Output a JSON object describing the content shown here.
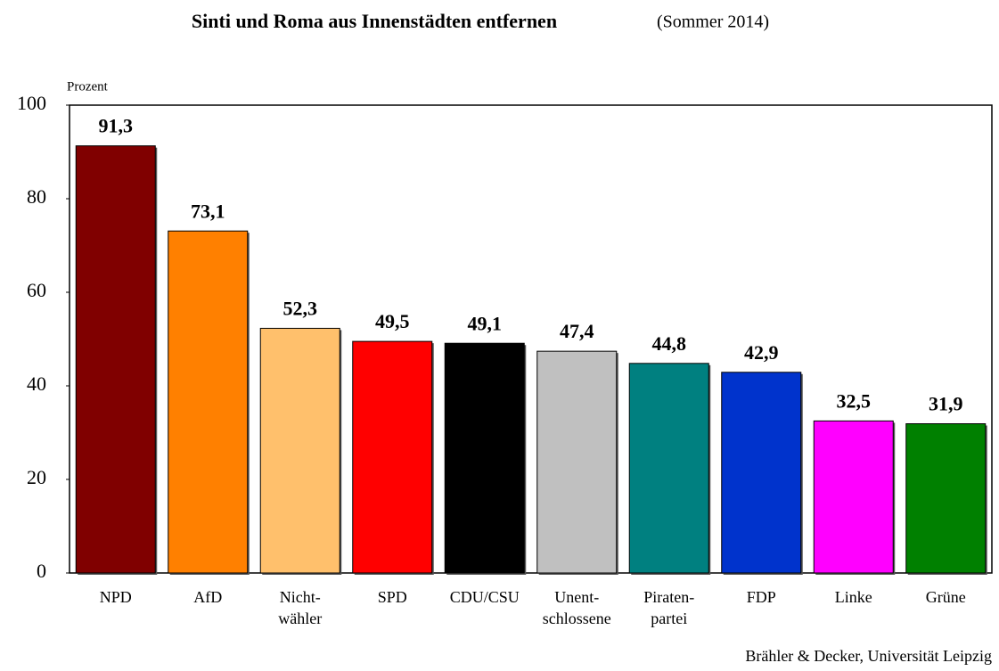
{
  "chart_data": {
    "type": "bar",
    "title": "Sinti und Roma aus Innenstädten entfernen",
    "subtitle": "(Sommer 2014)",
    "y_label": "Prozent",
    "source": "Brähler & Decker, Universität Leipzig",
    "categories": [
      "NPD",
      "AfD",
      "Nicht-\nwähler",
      "SPD",
      "CDU/CSU",
      "Unent-\nschlossene",
      "Piraten-\npartei",
      "FDP",
      "Linke",
      "Grüne"
    ],
    "values": [
      91.3,
      73.1,
      52.3,
      49.5,
      49.1,
      47.4,
      44.8,
      42.9,
      32.5,
      31.9
    ],
    "value_labels": [
      "91,3",
      "73,1",
      "52,3",
      "49,5",
      "49,1",
      "47,4",
      "44,8",
      "42,9",
      "32,5",
      "31,9"
    ],
    "colors": [
      "#800000",
      "#ff8000",
      "#ffc06c",
      "#ff0000",
      "#000000",
      "#c0c0c0",
      "#008080",
      "#0033cc",
      "#ff00ff",
      "#008000"
    ],
    "ylim": [
      0,
      100
    ],
    "yticks": [
      0,
      20,
      40,
      60,
      80,
      100
    ],
    "grid": false
  }
}
